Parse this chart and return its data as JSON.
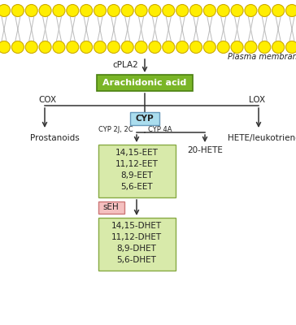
{
  "bg_color": "#ffffff",
  "lipid_head_color": "#ffee00",
  "lipid_head_edge": "#ccaa00",
  "arachidonic_box_fill": "#7ab527",
  "arachidonic_box_edge": "#4a8010",
  "arachidonic_text": "Arachidonic acid",
  "arachidonic_text_color": "#ffffff",
  "cyp_box_fill": "#aaddee",
  "cyp_box_edge": "#6699bb",
  "cyp_text": "CYP",
  "eet_box_fill": "#d8eaaa",
  "eet_box_edge": "#88aa44",
  "eet_lines": [
    "14,15-EET",
    "11,12-EET",
    "8,9-EET",
    "5,6-EET"
  ],
  "dhet_box_fill": "#d8eaaa",
  "dhet_box_edge": "#88aa44",
  "dhet_lines": [
    "14,15-DHET",
    "11,12-DHET",
    "8,9-DHET",
    "5,6-DHET"
  ],
  "seh_box_fill": "#f5c0c0",
  "seh_box_edge": "#cc7777",
  "seh_text": "sEH",
  "plasma_membrane_text": "Plasma membrane",
  "cpla2_text": "cPLA2",
  "cox_text": "COX",
  "lox_text": "LOX",
  "cyp2j_text": "CYP 2J, 2C",
  "cyp4a_text": "CYP 4A",
  "prostanoids_text": "Prostanoids",
  "hete_leuko_text": "HETE/leukotrienes",
  "hete20_text": "20-HETE",
  "arrow_color": "#333333",
  "text_color": "#222222",
  "font_size": 7.5
}
